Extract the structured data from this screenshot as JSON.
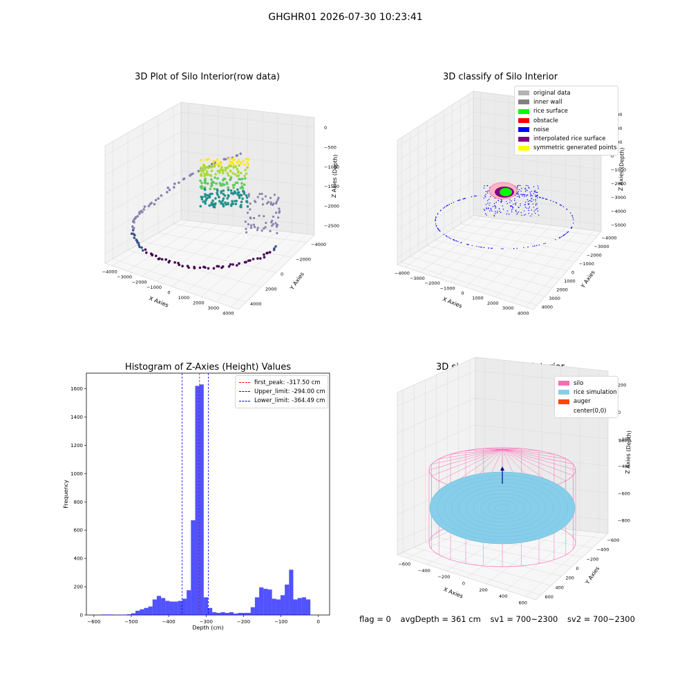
{
  "page": {
    "title": "GHGHR01 2026-07-30 10:23:41"
  },
  "panels": {
    "raw": {
      "title": "3D Plot of Silo Interior(row data)",
      "x_label": "X Axies",
      "y_label": "Y Axies",
      "z_label": "Z Axies (Depth)",
      "x_ticks": [
        "−4000",
        "−3000",
        "−2000",
        "−1000",
        "0",
        "1000",
        "2000",
        "3000",
        "4000"
      ],
      "y_ticks": [
        "−4000",
        "−2000",
        "0",
        "2000",
        "4000"
      ],
      "z_ticks": [
        "0",
        "−500",
        "−1000",
        "−1500",
        "−2000",
        "−2500"
      ]
    },
    "classify": {
      "title": "3D classify of Silo Interior",
      "x_label": "X Axies",
      "y_label": "Y Axies",
      "z_label": "Z Axies (Depth)",
      "x_ticks": [
        "−4000",
        "−3000",
        "−2000",
        "−1000",
        "0",
        "1000",
        "2000",
        "3000",
        "4000"
      ],
      "y_ticks": [
        "−4000",
        "−3000",
        "−2000",
        "−1000",
        "0",
        "1000",
        "2000",
        "3000",
        "4000"
      ],
      "z_ticks": [
        "3000",
        "2000",
        "1000",
        "0",
        "−1000",
        "−2000",
        "−3000",
        "−4000",
        "−5000"
      ],
      "legend": [
        {
          "label": "original data",
          "color": "#b3b3b3"
        },
        {
          "label": "inner wall",
          "color": "#808080"
        },
        {
          "label": "rice surface",
          "color": "#00ff00"
        },
        {
          "label": "obstacle",
          "color": "#ff0000"
        },
        {
          "label": "noise",
          "color": "#0000ff"
        },
        {
          "label": "interpolated rice surface",
          "color": "#800080"
        },
        {
          "label": "symmetric generated points",
          "color": "#ffff00"
        }
      ]
    },
    "simulation": {
      "title": "3D simulation of Silo Interior",
      "x_label": "X Axies",
      "y_label": "Y Axies",
      "z_label": "Z Axies (Depth)",
      "x_ticks": [
        "−600",
        "−400",
        "−200",
        "0",
        "200",
        "400",
        "600"
      ],
      "y_ticks": [
        "−600",
        "−400",
        "−200",
        "0",
        "200",
        "400",
        "600"
      ],
      "z_ticks": [
        "200",
        "0",
        "−200",
        "−400",
        "−600",
        "−800"
      ],
      "z_top_tick": "400",
      "legend": [
        {
          "label": "silo",
          "color": "#ff69b4"
        },
        {
          "label": "rice simulation",
          "color": "#87ceeb"
        },
        {
          "label": "auger",
          "color": "#ff4500"
        },
        {
          "label": "center(0,0)",
          "color": ""
        }
      ]
    }
  },
  "info": {
    "flag": "flag = 0",
    "avg_depth": "avgDepth = 361 cm",
    "sv1": "sv1 = 700~2300",
    "sv2": "sv2 = 700~2300"
  },
  "chart_data": [
    {
      "type": "histogram",
      "title": "Histogram of Z-Axies (Height) Values",
      "xlabel": "Depth (cm)",
      "ylabel": "Frequency",
      "xlim": [
        -620,
        30
      ],
      "ylim": [
        0,
        1710
      ],
      "xticks": [
        -600,
        -500,
        -400,
        -300,
        -200,
        -100,
        0
      ],
      "yticks": [
        0,
        200,
        400,
        600,
        800,
        1000,
        1200,
        1400,
        1600
      ],
      "bar_color": "#0000ff",
      "bin_start": -580,
      "bin_width": 11.4,
      "values": [
        3,
        3,
        3,
        0,
        2,
        2,
        5,
        12,
        30,
        40,
        50,
        60,
        110,
        135,
        120,
        100,
        95,
        95,
        100,
        115,
        175,
        670,
        1620,
        1630,
        125,
        50,
        20,
        15,
        20,
        15,
        20,
        10,
        15,
        15,
        15,
        55,
        125,
        195,
        185,
        180,
        115,
        110,
        140,
        215,
        320,
        110,
        120,
        125,
        110
      ],
      "vlines": [
        {
          "name": "first_peak: -317.50 cm",
          "x": -317.5,
          "color": "#ff0000"
        },
        {
          "name": "Upper_limit: -294.00 cm",
          "x": -294.0,
          "color": "#0000ff"
        },
        {
          "name": "Lower_limit: -364.49 cm",
          "x": -364.49,
          "color": "#0000ff"
        }
      ],
      "legend_position": "top-right"
    }
  ]
}
